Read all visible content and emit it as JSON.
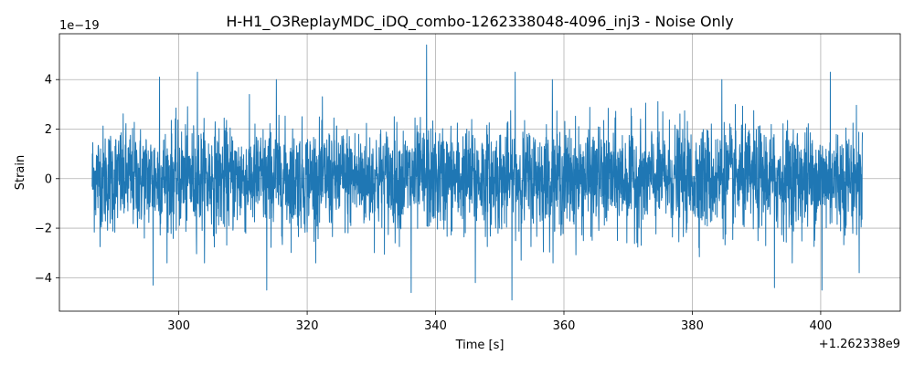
{
  "chart_data": {
    "type": "line",
    "title": "H-H1_O3ReplayMDC_iDQ_combo-1262338048-4096_inj3 - Noise Only",
    "xlabel": "Time [s]",
    "ylabel": "Strain",
    "x_offset_label": "+1.262338e9",
    "y_exponent_label": "1e−19",
    "xlim": [
      281.4,
      412.4
    ],
    "ylim": [
      -5.35,
      5.85
    ],
    "x_ticks": [
      300,
      320,
      340,
      360,
      380,
      400
    ],
    "x_tick_labels": [
      "300",
      "320",
      "340",
      "360",
      "380",
      "400"
    ],
    "y_ticks": [
      -4,
      -2,
      0,
      2,
      4
    ],
    "y_tick_labels": [
      "−4",
      "−2",
      "0",
      "2",
      "4"
    ],
    "grid": true,
    "legend": "none",
    "series": [
      {
        "color": "#1f77b4",
        "x_range": [
          286.5,
          406.5
        ],
        "typical_envelope": [
          -2.2,
          2.2
        ],
        "peaks": [
          {
            "x": 297.0,
            "y": 4.1
          },
          {
            "x": 302.9,
            "y": 4.3
          },
          {
            "x": 315.2,
            "y": 4.0
          },
          {
            "x": 338.6,
            "y": 5.4
          },
          {
            "x": 352.4,
            "y": 4.3
          },
          {
            "x": 358.2,
            "y": 4.0
          },
          {
            "x": 384.6,
            "y": 4.0
          },
          {
            "x": 401.5,
            "y": 4.3
          }
        ],
        "troughs": [
          {
            "x": 296.0,
            "y": -4.3
          },
          {
            "x": 313.7,
            "y": -4.5
          },
          {
            "x": 336.2,
            "y": -4.6
          },
          {
            "x": 346.2,
            "y": -4.2
          },
          {
            "x": 351.9,
            "y": -4.9
          },
          {
            "x": 392.8,
            "y": -4.4
          },
          {
            "x": 400.2,
            "y": -4.5
          },
          {
            "x": 406.0,
            "y": -3.8
          }
        ]
      }
    ]
  }
}
